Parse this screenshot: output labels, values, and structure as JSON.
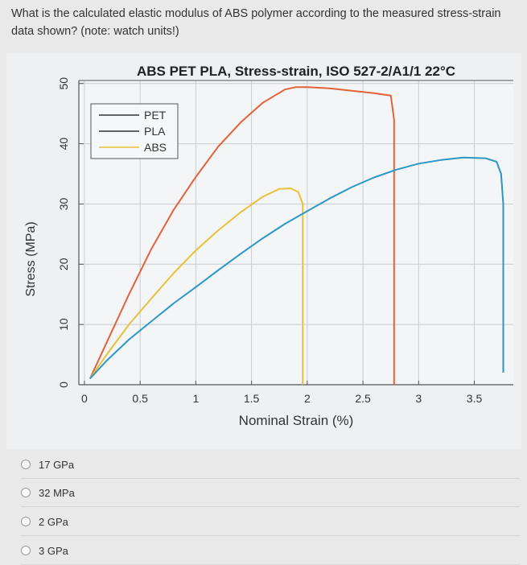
{
  "question": {
    "text": "What is the calculated elastic modulus of ABS polymer according to the measured stress-strain data shown? (note: watch units!)"
  },
  "chart_data": {
    "type": "line",
    "title": "ABS PET PLA, Stress-strain, ISO 527-2/A1/1 22°C",
    "xlabel": "Nominal Strain (%)",
    "ylabel": "Stress (MPa)",
    "xlim": [
      -0.05,
      3.85
    ],
    "ylim": [
      0,
      50.5
    ],
    "xticks": [
      0,
      0.5,
      1,
      1.5,
      2,
      2.5,
      3,
      3.5
    ],
    "xtick_labels": [
      "0",
      "0.5",
      "1",
      "1.5",
      "2",
      "2.5",
      "3",
      "3.5"
    ],
    "yticks": [
      0,
      10,
      20,
      30,
      40,
      50
    ],
    "ytick_labels": [
      "0",
      "10",
      "20",
      "30",
      "40",
      "50"
    ],
    "grid": true,
    "legend_position": "top-left",
    "series": [
      {
        "name": "PET",
        "color": "#e2623a",
        "x": [
          0.05,
          0.2,
          0.4,
          0.6,
          0.8,
          1.0,
          1.2,
          1.4,
          1.6,
          1.8,
          1.9,
          2.0,
          2.2,
          2.4,
          2.6,
          2.75,
          2.78,
          2.78
        ],
        "y": [
          1,
          7,
          15,
          22.5,
          29,
          34.5,
          39.5,
          43.5,
          46.8,
          49,
          49.4,
          49.4,
          49.2,
          48.8,
          48.4,
          48,
          44,
          0
        ]
      },
      {
        "name": "PLA",
        "color": "#e6c23a",
        "x": [
          0.05,
          0.2,
          0.4,
          0.6,
          0.8,
          1.0,
          1.2,
          1.4,
          1.6,
          1.75,
          1.85,
          1.92,
          1.96,
          1.96
        ],
        "y": [
          1,
          5,
          10,
          14.3,
          18.5,
          22.3,
          25.6,
          28.6,
          31.2,
          32.5,
          32.6,
          32,
          30,
          0
        ]
      },
      {
        "name": "ABS",
        "color": "#2b97c6",
        "x": [
          0.05,
          0.2,
          0.4,
          0.6,
          0.8,
          1.0,
          1.2,
          1.4,
          1.6,
          1.8,
          2.0,
          2.2,
          2.4,
          2.6,
          2.8,
          3.0,
          3.2,
          3.4,
          3.6,
          3.7,
          3.74,
          3.76,
          3.76
        ],
        "y": [
          1,
          4,
          7.5,
          10.5,
          13.5,
          16.2,
          19,
          21.7,
          24.3,
          26.7,
          28.8,
          30.9,
          32.8,
          34.4,
          35.7,
          36.7,
          37.3,
          37.7,
          37.6,
          37,
          35,
          30,
          2
        ]
      }
    ]
  },
  "options": [
    {
      "label": "17 GPa"
    },
    {
      "label": "32 MPa"
    },
    {
      "label": "2 GPa"
    },
    {
      "label": "3 GPa"
    }
  ]
}
